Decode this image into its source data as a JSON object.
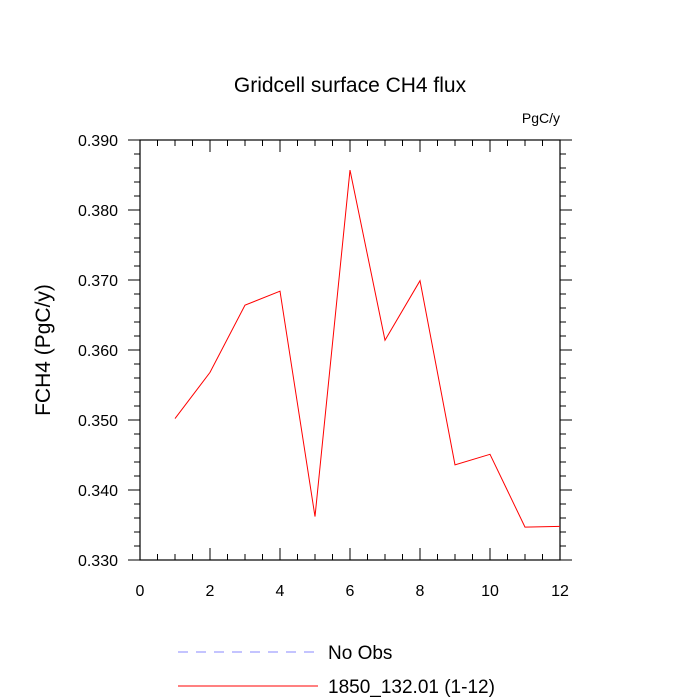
{
  "chart_data": {
    "type": "line",
    "title": "Gridcell surface CH4 flux",
    "units_label": "PgC/y",
    "ylabel": "FCH4  (PgC/y)",
    "xlabel": "",
    "xlim": [
      0,
      12
    ],
    "ylim": [
      0.33,
      0.39
    ],
    "x_ticks": [
      0,
      2,
      4,
      6,
      8,
      10,
      12
    ],
    "x_tick_labels": [
      "0",
      "2",
      "4",
      "6",
      "8",
      "10",
      "12"
    ],
    "y_ticks": [
      0.33,
      0.34,
      0.35,
      0.36,
      0.37,
      0.38,
      0.39
    ],
    "y_tick_labels": [
      "0.330",
      "0.340",
      "0.350",
      "0.360",
      "0.370",
      "0.380",
      "0.390"
    ],
    "grid": false,
    "legend_position": "bottom",
    "series": [
      {
        "name": "No Obs",
        "color": "#8a8aff",
        "dashed": true,
        "x": [],
        "y": []
      },
      {
        "name": "1850_132.01 (1-12)",
        "color": "#ff0000",
        "dashed": false,
        "x": [
          1,
          2,
          3,
          4,
          5,
          6,
          7,
          8,
          9,
          10,
          11,
          12
        ],
        "y": [
          0.3502,
          0.3568,
          0.3664,
          0.3684,
          0.3362,
          0.3857,
          0.3614,
          0.3699,
          0.3436,
          0.3451,
          0.3347,
          0.3348
        ]
      }
    ]
  }
}
